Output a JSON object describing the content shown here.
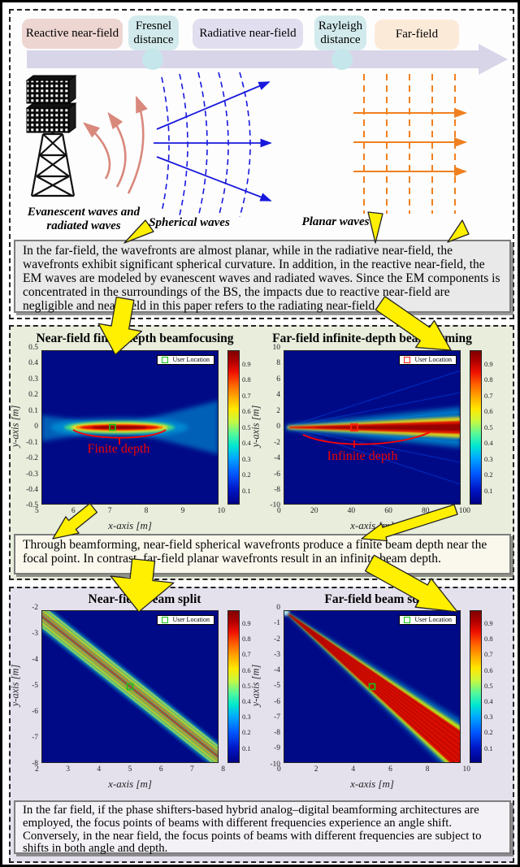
{
  "figure": {
    "timeline": {
      "regions": [
        {
          "label": "Reactive near-field",
          "color": "#edd5d1"
        },
        {
          "label": "Fresnel distance",
          "color": "#d2eaec"
        },
        {
          "label": "Radiative near-field",
          "color": "#e1def0"
        },
        {
          "label": "Rayleigh distance",
          "color": "#d2eaec"
        },
        {
          "label": "Far-field",
          "color": "#fcead9"
        }
      ],
      "arrow_color": "#d9d5e8"
    },
    "wave_labels": {
      "evanescent": "Evanescent waves and radiated waves",
      "spherical": "Spherical waves",
      "planar": "Planar waves"
    },
    "wave_colors": {
      "evanescent": "#d9887c",
      "spherical": "#1818dd",
      "planar": "#f08020"
    },
    "captions": {
      "box1": "In the far-field, the wavefronts are almost planar, while in the radiative near-field, the wavefronts exhibit significant spherical curvature. In addition, in the reactive near-field, the EM waves are modeled by evanescent waves and radiated waves. Since the EM components is concentrated in the surroundings of the BS, the impacts due to reactive near-field are negligible and near-field in this paper refers to the radiating near-field.",
      "box2": "Through beamforming, near-field spherical wavefronts produce a finite beam depth near the focal point. In contrast, far-field planar wavefronts result in an infinite beam depth.",
      "box3": "In the far field, if the phase shifters-based hybrid analog–digital beamforming architectures are employed, the focus points of beams with different frequencies experience an angle shift. Conversely, in the near field, the focus points of beams with different frequencies are subject to shifts in both angle and depth."
    }
  },
  "chart_data": [
    {
      "type": "heatmap",
      "title": "Near-field finite-depth beamfocusing",
      "xlabel": "x-axis [m]",
      "ylabel": "y-axis [m]",
      "xlim": [
        5,
        10
      ],
      "ylim": [
        -0.5,
        0.5
      ],
      "xticks": [
        "5",
        "6",
        "7",
        "8",
        "9",
        "10"
      ],
      "yticks": [
        "0.5",
        "0.4",
        "0.3",
        "0.2",
        "0.1",
        "0",
        "-0.1",
        "-0.2",
        "-0.3",
        "-0.4",
        "-0.5"
      ],
      "colorbar_ticks": [
        "0.9",
        "0.8",
        "0.7",
        "0.6",
        "0.5",
        "0.4",
        "0.3",
        "0.2",
        "0.1"
      ],
      "colorbar_range": [
        0,
        1
      ],
      "colormap": "jet",
      "legend_label": "User Location",
      "legend_marker_color": "#16c216",
      "user_location": [
        7,
        0
      ],
      "annotation": "Finite depth",
      "beam": "horizontal focused beam along y=0, hot core from x≈6 to x≈8.4 m"
    },
    {
      "type": "heatmap",
      "title": "Far-field infinite-depth beamforming",
      "xlabel": "x-axis [m]",
      "ylabel": "y-axis [m]",
      "xlim": [
        0,
        100
      ],
      "ylim": [
        -10,
        10
      ],
      "xticks": [
        "0",
        "20",
        "40",
        "60",
        "80",
        "100"
      ],
      "yticks": [
        "10",
        "8",
        "6",
        "4",
        "2",
        "0",
        "-2",
        "-4",
        "-6",
        "-8",
        "-10"
      ],
      "colorbar_ticks": [
        "0.9",
        "0.8",
        "0.7",
        "0.6",
        "0.5",
        "0.4",
        "0.3",
        "0.2",
        "0.1"
      ],
      "colorbar_range": [
        0,
        1
      ],
      "colormap": "jet",
      "legend_label": "User Location",
      "legend_marker_color": "#ff2010",
      "user_location": [
        40,
        0
      ],
      "annotation": "Infinite depth",
      "beam": "narrow cone from origin along y=0 staying hot out to x=100 m"
    },
    {
      "type": "heatmap",
      "title": "Near-field beam split",
      "xlabel": "x-axis [m]",
      "ylabel": "y-axis [m]",
      "xlim": [
        2,
        8
      ],
      "ylim": [
        -8,
        -2
      ],
      "xticks": [
        "2",
        "3",
        "4",
        "5",
        "6",
        "7",
        "8"
      ],
      "yticks": [
        "-2",
        "-3",
        "-4",
        "-5",
        "-6",
        "-7",
        "-8"
      ],
      "colorbar_ticks": [
        "0.9",
        "0.8",
        "0.7",
        "0.6",
        "0.5",
        "0.4",
        "0.3",
        "0.2",
        "0.1"
      ],
      "colorbar_range": [
        0,
        1
      ],
      "colormap": "jet",
      "legend_label": "User Location",
      "legend_marker_color": "#16c216",
      "user_location": [
        5,
        -5
      ],
      "annotation": "",
      "beam": "diagonal band through (5,-5) split into multiple frequency stripes"
    },
    {
      "type": "heatmap",
      "title": "Far-field beam squint",
      "xlabel": "x-axis [m]",
      "ylabel": "y-axis [m]",
      "xlim": [
        0,
        10
      ],
      "ylim": [
        -10,
        0
      ],
      "xticks": [
        "0",
        "2",
        "4",
        "6",
        "8",
        "10"
      ],
      "yticks": [
        "0",
        "-1",
        "-2",
        "-3",
        "-4",
        "-5",
        "-6",
        "-7",
        "-8",
        "-9",
        "-10"
      ],
      "colorbar_ticks": [
        "0.9",
        "0.8",
        "0.7",
        "0.6",
        "0.5",
        "0.4",
        "0.3",
        "0.2",
        "0.1"
      ],
      "colorbar_range": [
        0,
        1
      ],
      "colormap": "jet",
      "legend_label": "User Location",
      "legend_marker_color": "#16c216",
      "user_location": [
        5,
        -5
      ],
      "annotation": "",
      "beam": "red wedge widening from origin through (5,-5) with squinted frequency stripes"
    }
  ]
}
